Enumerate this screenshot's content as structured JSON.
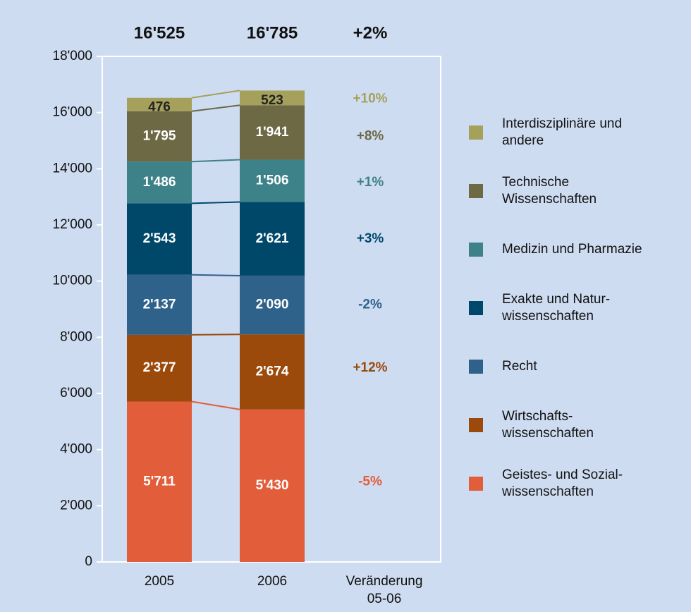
{
  "chart_data": {
    "type": "stacked_bar",
    "categories": [
      "2005",
      "2006"
    ],
    "change_axis_label": "Veränderung\n05-06",
    "totals": [
      16525,
      16785
    ],
    "total_labels": [
      "16'525",
      "16'785"
    ],
    "total_change": 2,
    "total_change_label": "+2%",
    "ylim": [
      0,
      18000
    ],
    "yticks": [
      0,
      {
        "value": 2000,
        "label": "2'000"
      },
      {
        "value": 4000,
        "label": "4'000"
      },
      {
        "value": 6000,
        "label": "6'000"
      },
      {
        "value": 8000,
        "label": "8'000"
      },
      {
        "value": 10000,
        "label": "10'000"
      },
      {
        "value": 12000,
        "label": "12'000"
      },
      {
        "value": 14000,
        "label": "14'000"
      },
      {
        "value": 16000,
        "label": "16'000"
      },
      {
        "value": 18000,
        "label": "18'000"
      }
    ],
    "series": [
      {
        "name": "Geistes- und Sozial-\nwissenschaften",
        "color": "#e25d3a",
        "values": [
          5711,
          5430
        ],
        "value_labels": [
          "5'711",
          "5'430"
        ],
        "change": -5,
        "change_label": "-5%"
      },
      {
        "name": "Wirtschafts-\nwissenschaften",
        "color": "#9b4a0b",
        "values": [
          2377,
          2674
        ],
        "value_labels": [
          "2'377",
          "2'674"
        ],
        "change": 12,
        "change_label": "+12%"
      },
      {
        "name": "Recht",
        "color": "#2f628b",
        "values": [
          2137,
          2090
        ],
        "value_labels": [
          "2'137",
          "2'090"
        ],
        "change": -2,
        "change_label": "-2%"
      },
      {
        "name": "Exakte und Natur-\nwissenschaften",
        "color": "#00486a",
        "values": [
          2543,
          2621
        ],
        "value_labels": [
          "2'543",
          "2'621"
        ],
        "change": 3,
        "change_label": "+3%"
      },
      {
        "name": "Medizin und Pharmazie",
        "color": "#3e8289",
        "values": [
          1486,
          1506
        ],
        "value_labels": [
          "1'486",
          "1'506"
        ],
        "change": 1,
        "change_label": "+1%"
      },
      {
        "name": "Technische\nWissenschaften",
        "color": "#6d6945",
        "values": [
          1795,
          1941
        ],
        "value_labels": [
          "1'795",
          "1'941"
        ],
        "change": 8,
        "change_label": "+8%"
      },
      {
        "name": "Interdisziplinäre und\nandere",
        "color": "#a5a05c",
        "values": [
          476,
          523
        ],
        "value_labels": [
          "476",
          "523"
        ],
        "change": 10,
        "change_label": "+10%"
      }
    ]
  }
}
